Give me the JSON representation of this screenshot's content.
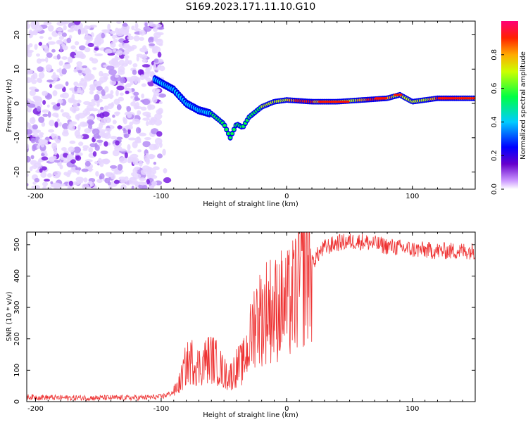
{
  "chart_data": [
    {
      "type": "heatmap",
      "title": "S169.2023.171.11.10.G10",
      "xlabel": "Height of straight line (km)",
      "ylabel": "Frequency (Hz)",
      "xlim": [
        -207,
        150
      ],
      "ylim": [
        -25,
        24
      ],
      "xticks": [
        -200,
        -100,
        0,
        100
      ],
      "yticks": [
        -20,
        -10,
        0,
        10,
        20
      ],
      "colorbar": {
        "label": "Normalized spectral amplitude",
        "range": [
          0,
          1
        ],
        "ticks": [
          0.0,
          0.2,
          0.4,
          0.6,
          0.8
        ]
      },
      "ridge": {
        "description": "dominant frequency trace",
        "x": [
          -100,
          -90,
          -80,
          -70,
          -60,
          -50,
          -45,
          -40,
          -35,
          -30,
          -20,
          -10,
          0,
          20,
          40,
          60,
          80,
          90,
          100,
          120,
          150
        ],
        "y": [
          6,
          4,
          0,
          -2,
          -3,
          -6,
          -10,
          -6,
          -7,
          -4,
          -1,
          0.5,
          1,
          0.5,
          0.5,
          1,
          1.5,
          2.5,
          0.5,
          1.5,
          1.5
        ]
      }
    },
    {
      "type": "line",
      "xlabel": "Height of straight line (km)",
      "ylabel": "SNR (10 * v/v)",
      "xlim": [
        -207,
        150
      ],
      "ylim": [
        0,
        540
      ],
      "xticks": [
        -200,
        -100,
        0,
        100
      ],
      "yticks": [
        0,
        100,
        200,
        300,
        400,
        500
      ],
      "series": [
        {
          "name": "SNR",
          "color": "#ee3333",
          "x": [
            -207,
            -180,
            -150,
            -120,
            -100,
            -90,
            -85,
            -80,
            -75,
            -70,
            -65,
            -60,
            -55,
            -50,
            -45,
            -40,
            -35,
            -30,
            -25,
            -20,
            -15,
            -10,
            -5,
            0,
            5,
            10,
            15,
            20,
            25,
            30,
            40,
            50,
            60,
            80,
            100,
            120,
            150
          ],
          "y": [
            15,
            12,
            12,
            12,
            15,
            30,
            60,
            120,
            130,
            110,
            130,
            140,
            120,
            90,
            80,
            110,
            120,
            180,
            270,
            270,
            300,
            290,
            310,
            300,
            330,
            380,
            420,
            440,
            470,
            490,
            505,
            510,
            510,
            495,
            485,
            480,
            480
          ]
        }
      ]
    }
  ]
}
